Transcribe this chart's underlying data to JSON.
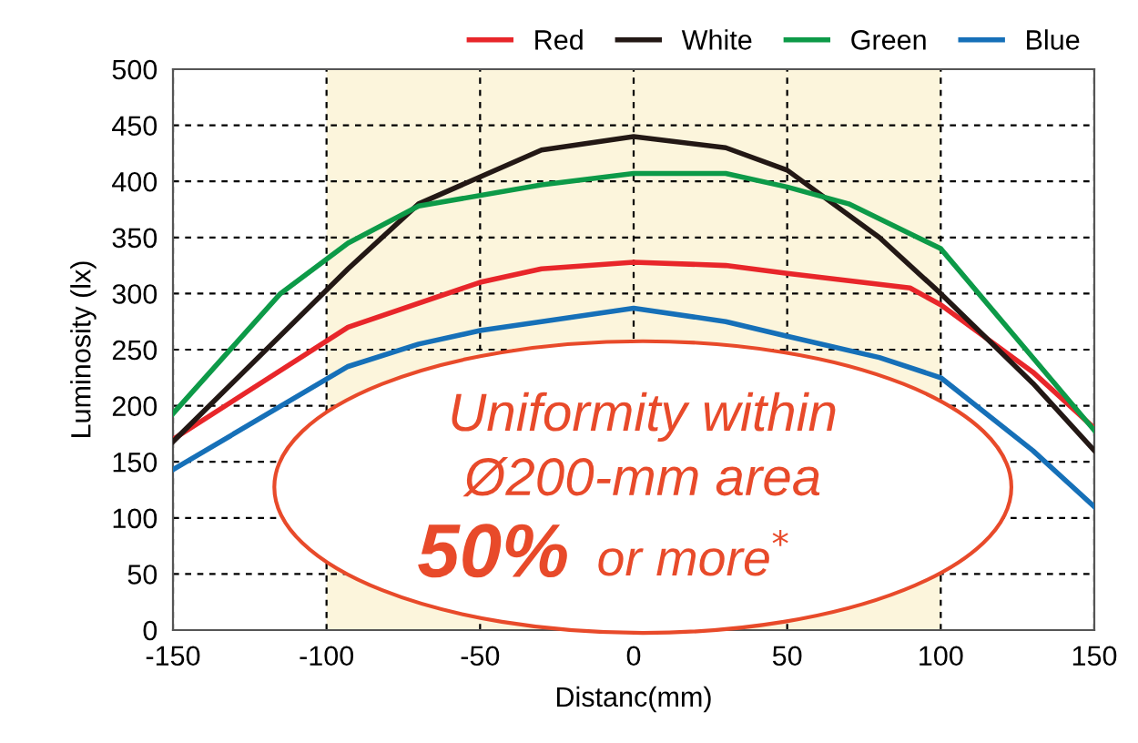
{
  "chart_data": {
    "type": "line",
    "xlabel": "Distanc(mm)",
    "ylabel": "Luminosity (lx)",
    "xlim": [
      -150,
      150
    ],
    "xticks": [
      -150,
      -100,
      -50,
      0,
      50,
      100,
      150
    ],
    "ylim": [
      0,
      500
    ],
    "yticks": [
      0,
      50,
      100,
      150,
      200,
      250,
      300,
      350,
      400,
      450,
      500
    ],
    "grid": true,
    "legend": "top right",
    "marker": "none",
    "line_style": "solid",
    "bands": [
      {
        "axis": "x",
        "from": -100,
        "to": 100,
        "label": null,
        "color": "#fcf5dc"
      }
    ],
    "annotations": [
      "Uniformity within",
      "Ø200-mm area",
      "50%",
      "or more$^{*}$"
    ],
    "series": [
      {
        "name": "Red",
        "color": "#e8262a",
        "x": [
          -150,
          -93,
          -50,
          -30,
          0,
          30,
          50,
          90,
          100,
          130,
          150
        ],
        "values": [
          170,
          270,
          310,
          322,
          328,
          325,
          318,
          305,
          290,
          230,
          180
        ]
      },
      {
        "name": "White",
        "color": "#231815",
        "x": [
          -150,
          -93,
          -70,
          -30,
          0,
          30,
          50,
          80,
          100,
          130,
          150
        ],
        "values": [
          168,
          322,
          380,
          428,
          440,
          430,
          410,
          350,
          300,
          220,
          160
        ]
      },
      {
        "name": "Green",
        "color": "#0d9a48",
        "x": [
          -150,
          -115,
          -93,
          -70,
          -30,
          0,
          30,
          50,
          70,
          100,
          150
        ],
        "values": [
          193,
          300,
          345,
          378,
          397,
          407,
          407,
          395,
          380,
          340,
          178
        ]
      },
      {
        "name": "Blue",
        "color": "#1670b8",
        "x": [
          -150,
          -93,
          -70,
          -50,
          -30,
          0,
          30,
          50,
          80,
          100,
          130,
          150
        ],
        "values": [
          143,
          235,
          255,
          267,
          275,
          287,
          275,
          262,
          243,
          225,
          160,
          110
        ]
      }
    ]
  }
}
